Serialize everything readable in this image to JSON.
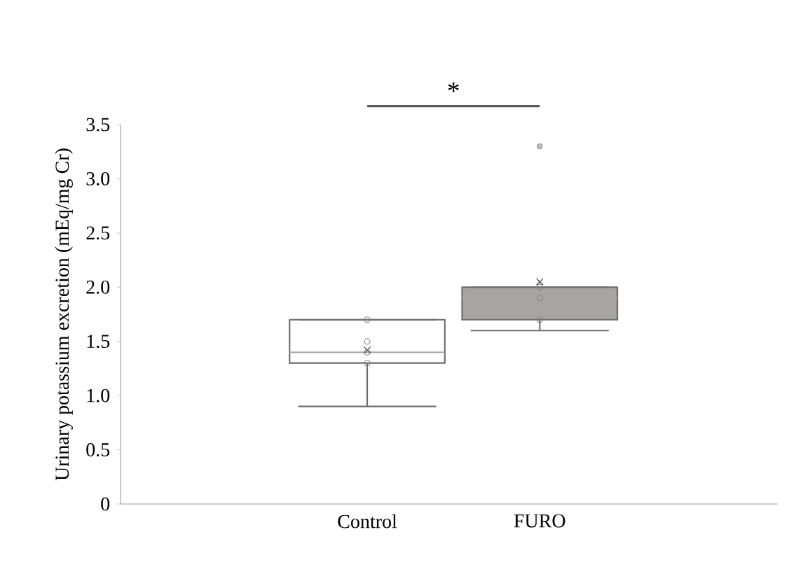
{
  "chart_data": {
    "type": "box",
    "ylabel": "Urinary potassium excretion (mEq/mg Cr)",
    "categories": [
      "Control",
      "FURO"
    ],
    "ylim": [
      0,
      3.5
    ],
    "yticks": [
      0,
      0.5,
      {
        "value": 1,
        "label": "1.0"
      },
      1.5,
      {
        "value": 2,
        "label": "2.0"
      },
      2.5,
      {
        "value": 3,
        "label": "3.0"
      },
      3.5
    ],
    "colors": [
      "#ffffff",
      "#a8a4a4"
    ],
    "boxes": [
      {
        "low": 0.9,
        "q1": 1.3,
        "median": 1.4,
        "q3": 1.7,
        "high": 1.7,
        "mean": 1.42
      },
      {
        "low": 1.6,
        "q1": 1.7,
        "median": 1.9,
        "q3": 2.0,
        "high": 2.0,
        "mean": 2.05,
        "outliers": [
          3.3
        ]
      }
    ],
    "series": [
      {
        "type": "scatter",
        "color": "#808080",
        "marker": "circle",
        "x": [
          "Control",
          "Control",
          "Control",
          "Control",
          "FURO",
          "FURO",
          "FURO"
        ],
        "values": [
          1.7,
          1.5,
          1.4,
          1.3,
          2.0,
          1.9,
          1.7
        ]
      }
    ],
    "annotations": [
      "*"
    ]
  }
}
